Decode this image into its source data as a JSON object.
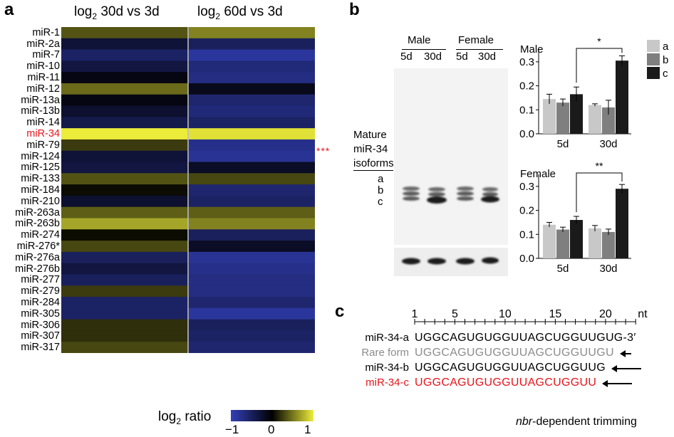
{
  "panels": {
    "a": "a",
    "b": "b",
    "c": "c"
  },
  "heatmap": {
    "col_titles": [
      {
        "prefix": "log",
        "sub": "2",
        "rest": " 30d vs 3d"
      },
      {
        "prefix": "log",
        "sub": "2",
        "rest": " 60d vs 3d"
      }
    ],
    "stars": "***",
    "highlight_row": "miR-34",
    "legend": {
      "prefix": "log",
      "sub": "2",
      "rest": " ratio",
      "ticks": [
        "−1",
        "0",
        "1"
      ]
    }
  },
  "chart_data": [
    {
      "type": "heatmap",
      "columns": [
        "30d vs 3d",
        "60d vs 3d"
      ],
      "rows": [
        "miR-1",
        "miR-2a",
        "miR-7",
        "miR-10",
        "miR-11",
        "miR-12",
        "miR-13a",
        "miR-13b",
        "miR-14",
        "miR-34",
        "miR-79",
        "miR-124",
        "miR-125",
        "miR-133",
        "miR-184",
        "miR-210",
        "miR-263a",
        "miR-263b",
        "miR-274",
        "miR-276*",
        "miR-276a",
        "miR-276b",
        "miR-277",
        "miR-279",
        "miR-284",
        "miR-305",
        "miR-306",
        "miR-307",
        "miR-317"
      ],
      "values": [
        [
          0.35,
          0.55
        ],
        [
          -0.3,
          -0.5
        ],
        [
          -0.55,
          -0.85
        ],
        [
          -0.35,
          -0.65
        ],
        [
          -0.1,
          -0.7
        ],
        [
          0.45,
          -0.15
        ],
        [
          -0.1,
          -0.6
        ],
        [
          -0.25,
          -0.65
        ],
        [
          -0.4,
          -0.55
        ],
        [
          1.0,
          0.95
        ],
        [
          0.25,
          -0.75
        ],
        [
          -0.3,
          -0.8
        ],
        [
          -0.35,
          -0.2
        ],
        [
          0.35,
          0.3
        ],
        [
          0.05,
          -0.6
        ],
        [
          -0.25,
          -0.55
        ],
        [
          0.4,
          0.4
        ],
        [
          0.7,
          0.55
        ],
        [
          0.05,
          -0.5
        ],
        [
          0.3,
          -0.2
        ],
        [
          -0.5,
          -0.8
        ],
        [
          -0.35,
          -0.75
        ],
        [
          -0.5,
          -0.7
        ],
        [
          0.25,
          -0.7
        ],
        [
          -0.55,
          -0.6
        ],
        [
          -0.55,
          -0.85
        ],
        [
          0.2,
          -0.5
        ],
        [
          0.2,
          -0.55
        ],
        [
          0.3,
          -0.6
        ]
      ],
      "colorscale": {
        "min": -1,
        "mid": 0,
        "max": 1,
        "low": "#3340b8",
        "zero": "#000000",
        "high": "#ecec3a"
      }
    },
    {
      "type": "bar",
      "title": "Male",
      "categories": [
        "5d",
        "30d"
      ],
      "series": [
        {
          "name": "a",
          "values": [
            0.145,
            0.12
          ],
          "errors": [
            0.02,
            0.005
          ]
        },
        {
          "name": "b",
          "values": [
            0.13,
            0.11
          ],
          "errors": [
            0.015,
            0.03
          ]
        },
        {
          "name": "c",
          "values": [
            0.165,
            0.305
          ],
          "errors": [
            0.03,
            0.02
          ]
        }
      ],
      "ylim": [
        0,
        0.35
      ],
      "yticks": [
        "0.0",
        "0.1",
        "0.2",
        "0.3"
      ],
      "significance": "*"
    },
    {
      "type": "bar",
      "title": "Female",
      "categories": [
        "5d",
        "30d"
      ],
      "series": [
        {
          "name": "a",
          "values": [
            0.14,
            0.125
          ],
          "errors": [
            0.01,
            0.012
          ]
        },
        {
          "name": "b",
          "values": [
            0.12,
            0.11
          ],
          "errors": [
            0.01,
            0.012
          ]
        },
        {
          "name": "c",
          "values": [
            0.16,
            0.29
          ],
          "errors": [
            0.015,
            0.018
          ]
        }
      ],
      "ylim": [
        0,
        0.35
      ],
      "yticks": [
        "0.0",
        "0.1",
        "0.2",
        "0.3"
      ],
      "significance": "**"
    }
  ],
  "bar_legend": [
    {
      "name": "a",
      "color": "#c8c8c8"
    },
    {
      "name": "b",
      "color": "#7f7f7f"
    },
    {
      "name": "c",
      "color": "#1a1a1a"
    }
  ],
  "blot": {
    "groups": [
      "Male",
      "Female"
    ],
    "lanes": [
      "5d",
      "30d",
      "5d",
      "30d"
    ],
    "side_label": [
      "Mature",
      "miR-34",
      "isoforms"
    ],
    "bands": [
      "a",
      "b",
      "c"
    ]
  },
  "sequence": {
    "axis": {
      "ticks": [
        "1",
        "5",
        "10",
        "15",
        "20"
      ],
      "unit": "nt"
    },
    "rows": [
      {
        "label": "miR-34-a",
        "seq": "UGGCAGUGUGGUUAGCUGGUUGUG-3′",
        "color": "#000000",
        "arrow": false
      },
      {
        "label": "Rare form",
        "seq": "UGGCAGUGUGGUUAGCUGGUUGU",
        "color": "#8c8c8c",
        "arrow": true
      },
      {
        "label": "miR-34-b",
        "seq": "UGGCAGUGUGGUUAGCUGGUUG",
        "color": "#000000",
        "arrow": true
      },
      {
        "label": "miR-34-c",
        "seq": "UGGCAGUGUGGUUAGCUGGUU",
        "color": "#e8141a",
        "arrow": true
      }
    ],
    "caption_italic": "nbr",
    "caption_rest": "-dependent trimming"
  }
}
